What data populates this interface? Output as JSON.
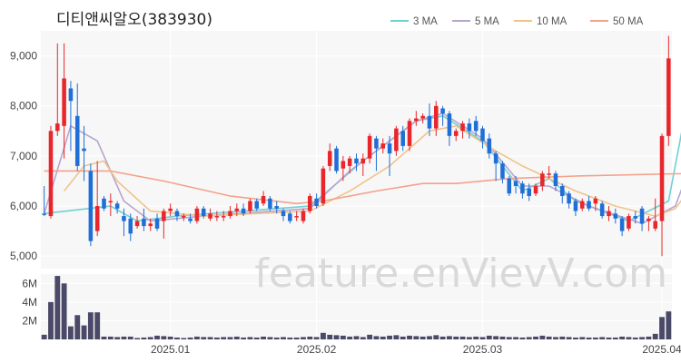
{
  "title": "디티앤씨알오(383930)",
  "watermark": "feature.enVievV.com",
  "chart_data": {
    "type": "candlestick",
    "legend": [
      {
        "name": "3 MA",
        "color": "#6fd0d6"
      },
      {
        "name": "5 MA",
        "color": "#b9a3cf"
      },
      {
        "name": "10 MA",
        "color": "#f0c38a"
      },
      {
        "name": "50 MA",
        "color": "#f4a18a"
      }
    ],
    "colors": {
      "up": "#e8262b",
      "down": "#1f6fd6",
      "volume": "#4a4a68"
    },
    "price_axis": {
      "ticks": [
        5000,
        6000,
        7000,
        8000,
        9000
      ],
      "labels": [
        "5,000",
        "6,000",
        "7,000",
        "8,000",
        "9,000"
      ],
      "range": [
        4750,
        9500
      ]
    },
    "volume_axis": {
      "ticks": [
        2000000,
        4000000,
        6000000
      ],
      "labels": [
        "2M",
        "4M",
        "6M"
      ],
      "range": [
        0,
        7000000
      ]
    },
    "x_labels": [
      {
        "label": "2025.01",
        "index": 19
      },
      {
        "label": "2025.02",
        "index": 41
      },
      {
        "label": "2025.03",
        "index": 66
      },
      {
        "label": "2025.04",
        "index": 93
      }
    ],
    "candles": [
      [
        5850,
        5830,
        6400,
        5800,
        500000
      ],
      [
        5800,
        7500,
        7600,
        5750,
        4000000
      ],
      [
        7500,
        7650,
        9250,
        7400,
        6800000
      ],
      [
        7600,
        8550,
        9250,
        6950,
        6000000
      ],
      [
        8350,
        8100,
        8500,
        7100,
        1400000
      ],
      [
        7800,
        6800,
        8450,
        6700,
        2600000
      ],
      [
        7150,
        7100,
        7600,
        6500,
        1500000
      ],
      [
        6700,
        5300,
        6850,
        5200,
        2900000
      ],
      [
        5500,
        6000,
        6900,
        5400,
        2900000
      ],
      [
        6150,
        5950,
        6200,
        5900,
        300000
      ],
      [
        6100,
        6100,
        6250,
        5800,
        300000
      ],
      [
        6050,
        5950,
        6100,
        5850,
        250000
      ],
      [
        5800,
        5700,
        5950,
        5400,
        300000
      ],
      [
        5750,
        5450,
        5850,
        5300,
        300000
      ],
      [
        5600,
        5700,
        5800,
        5550,
        150000
      ],
      [
        5750,
        5600,
        5950,
        5500,
        200000
      ],
      [
        5600,
        5650,
        5750,
        5500,
        250000
      ],
      [
        5750,
        5550,
        5850,
        5500,
        400000
      ],
      [
        5700,
        5900,
        5950,
        5350,
        350000
      ],
      [
        5900,
        5950,
        6050,
        5800,
        300000
      ],
      [
        5900,
        5800,
        5950,
        5700,
        200000
      ],
      [
        5800,
        5800,
        5850,
        5700,
        150000
      ],
      [
        5750,
        5700,
        5850,
        5650,
        200000
      ],
      [
        5700,
        5950,
        6000,
        5650,
        300000
      ],
      [
        5950,
        5800,
        6000,
        5750,
        250000
      ],
      [
        5750,
        5850,
        5950,
        5700,
        250000
      ],
      [
        5800,
        5800,
        5900,
        5700,
        200000
      ],
      [
        5800,
        5800,
        5900,
        5700,
        250000
      ],
      [
        5800,
        5900,
        6000,
        5750,
        250000
      ],
      [
        5900,
        5950,
        6050,
        5800,
        300000
      ],
      [
        5950,
        5850,
        6050,
        5800,
        200000
      ],
      [
        5900,
        6100,
        6150,
        5850,
        250000
      ],
      [
        6100,
        5950,
        6150,
        5900,
        200000
      ],
      [
        6050,
        6200,
        6300,
        6000,
        300000
      ],
      [
        6150,
        5950,
        6200,
        5900,
        250000
      ],
      [
        6000,
        5950,
        6100,
        5850,
        200000
      ],
      [
        5900,
        5800,
        5950,
        5700,
        250000
      ],
      [
        5850,
        5700,
        5900,
        5650,
        200000
      ],
      [
        5800,
        5800,
        5900,
        5700,
        200000
      ],
      [
        5700,
        5900,
        5950,
        5650,
        250000
      ],
      [
        5900,
        6200,
        6250,
        5850,
        300000
      ],
      [
        6150,
        6000,
        6250,
        5950,
        250000
      ],
      [
        6050,
        6750,
        6800,
        6000,
        700000
      ],
      [
        6800,
        7100,
        7250,
        6700,
        500000
      ],
      [
        7150,
        6700,
        7200,
        6650,
        450000
      ],
      [
        6750,
        6900,
        7000,
        6500,
        400000
      ],
      [
        6800,
        6950,
        7000,
        6650,
        300000
      ],
      [
        6950,
        6850,
        7050,
        6700,
        350000
      ],
      [
        6850,
        6950,
        7050,
        6600,
        250000
      ],
      [
        6950,
        7400,
        7450,
        6850,
        500000
      ],
      [
        7350,
        7150,
        7400,
        6700,
        350000
      ],
      [
        7150,
        7250,
        7350,
        7050,
        300000
      ],
      [
        7250,
        7050,
        7400,
        6600,
        400000
      ],
      [
        7100,
        7550,
        7600,
        7000,
        450000
      ],
      [
        7500,
        7200,
        7600,
        7100,
        300000
      ],
      [
        7200,
        7700,
        7750,
        7100,
        400000
      ],
      [
        7700,
        7750,
        7900,
        7600,
        350000
      ],
      [
        7750,
        7800,
        7850,
        7650,
        300000
      ],
      [
        7800,
        7550,
        8050,
        7400,
        350000
      ],
      [
        7550,
        8000,
        8100,
        7400,
        450000
      ],
      [
        7950,
        7850,
        8000,
        7600,
        300000
      ],
      [
        7850,
        7400,
        7900,
        7200,
        350000
      ],
      [
        7400,
        7500,
        7550,
        7300,
        300000
      ],
      [
        7500,
        7650,
        7700,
        7350,
        300000
      ],
      [
        7650,
        7500,
        7750,
        7350,
        250000
      ],
      [
        7700,
        7500,
        7800,
        7400,
        300000
      ],
      [
        7550,
        7300,
        7600,
        7150,
        250000
      ],
      [
        7350,
        7050,
        7450,
        6950,
        400000
      ],
      [
        7050,
        6850,
        7100,
        6500,
        350000
      ],
      [
        6850,
        6550,
        6900,
        6450,
        300000
      ],
      [
        6550,
        6250,
        6600,
        6200,
        250000
      ],
      [
        6500,
        6400,
        6600,
        6250,
        250000
      ],
      [
        6450,
        6250,
        6500,
        6150,
        200000
      ],
      [
        6350,
        6200,
        6450,
        6100,
        250000
      ],
      [
        6250,
        6400,
        6450,
        6200,
        300000
      ],
      [
        6400,
        6650,
        6700,
        6300,
        400000
      ],
      [
        6650,
        6650,
        6800,
        6550,
        300000
      ],
      [
        6650,
        6400,
        6700,
        6300,
        250000
      ],
      [
        6400,
        6200,
        6450,
        6050,
        300000
      ],
      [
        6250,
        6050,
        6300,
        5950,
        250000
      ],
      [
        6100,
        5900,
        6150,
        5800,
        200000
      ],
      [
        5950,
        6100,
        6150,
        5900,
        250000
      ],
      [
        6100,
        5950,
        6200,
        5900,
        200000
      ],
      [
        6050,
        6150,
        6200,
        5900,
        200000
      ],
      [
        6050,
        5800,
        6100,
        5750,
        250000
      ],
      [
        5800,
        5900,
        6000,
        5700,
        200000
      ],
      [
        5850,
        5750,
        5950,
        5650,
        200000
      ],
      [
        5750,
        5500,
        5800,
        5400,
        300000
      ],
      [
        5550,
        5800,
        5850,
        5500,
        250000
      ],
      [
        5800,
        5750,
        5900,
        5650,
        200000
      ],
      [
        5950,
        5650,
        6000,
        5500,
        250000
      ],
      [
        5700,
        5750,
        5800,
        5500,
        300000
      ],
      [
        5550,
        5700,
        6150,
        5500,
        600000
      ],
      [
        5700,
        7400,
        7450,
        5000,
        2400000
      ],
      [
        7400,
        8950,
        9400,
        7200,
        3000000
      ]
    ],
    "ma": {
      "3 MA": [
        [
          0,
          5850
        ],
        [
          10,
          6000
        ],
        [
          14,
          5700
        ],
        [
          20,
          5800
        ],
        [
          40,
          6000
        ],
        [
          48,
          6900
        ],
        [
          56,
          7700
        ],
        [
          60,
          7800
        ],
        [
          66,
          7300
        ],
        [
          72,
          6300
        ],
        [
          76,
          6550
        ],
        [
          80,
          6100
        ],
        [
          88,
          5700
        ],
        [
          94,
          6100
        ],
        [
          96,
          7500
        ],
        [
          97,
          8000
        ]
      ],
      "5 MA": [
        [
          0,
          5850
        ],
        [
          4,
          7600
        ],
        [
          8,
          7300
        ],
        [
          12,
          6100
        ],
        [
          16,
          5700
        ],
        [
          24,
          5800
        ],
        [
          40,
          5950
        ],
        [
          46,
          6700
        ],
        [
          56,
          7700
        ],
        [
          60,
          7850
        ],
        [
          66,
          7350
        ],
        [
          72,
          6400
        ],
        [
          76,
          6400
        ],
        [
          82,
          6000
        ],
        [
          90,
          5650
        ],
        [
          95,
          6000
        ],
        [
          97,
          6700
        ]
      ],
      "10 MA": [
        [
          3,
          6300
        ],
        [
          6,
          6800
        ],
        [
          9,
          6900
        ],
        [
          11,
          6500
        ],
        [
          16,
          5900
        ],
        [
          24,
          5800
        ],
        [
          40,
          5900
        ],
        [
          46,
          6300
        ],
        [
          52,
          6800
        ],
        [
          58,
          7500
        ],
        [
          62,
          7600
        ],
        [
          68,
          7100
        ],
        [
          72,
          6800
        ],
        [
          80,
          6300
        ],
        [
          86,
          6000
        ],
        [
          92,
          5800
        ],
        [
          95,
          5950
        ],
        [
          97,
          6300
        ]
      ],
      "50 MA": [
        [
          0,
          6700
        ],
        [
          10,
          6700
        ],
        [
          18,
          6500
        ],
        [
          28,
          6200
        ],
        [
          38,
          6050
        ],
        [
          42,
          6100
        ],
        [
          50,
          6300
        ],
        [
          57,
          6450
        ],
        [
          62,
          6450
        ],
        [
          70,
          6550
        ],
        [
          80,
          6600
        ],
        [
          97,
          6650
        ]
      ]
    }
  }
}
